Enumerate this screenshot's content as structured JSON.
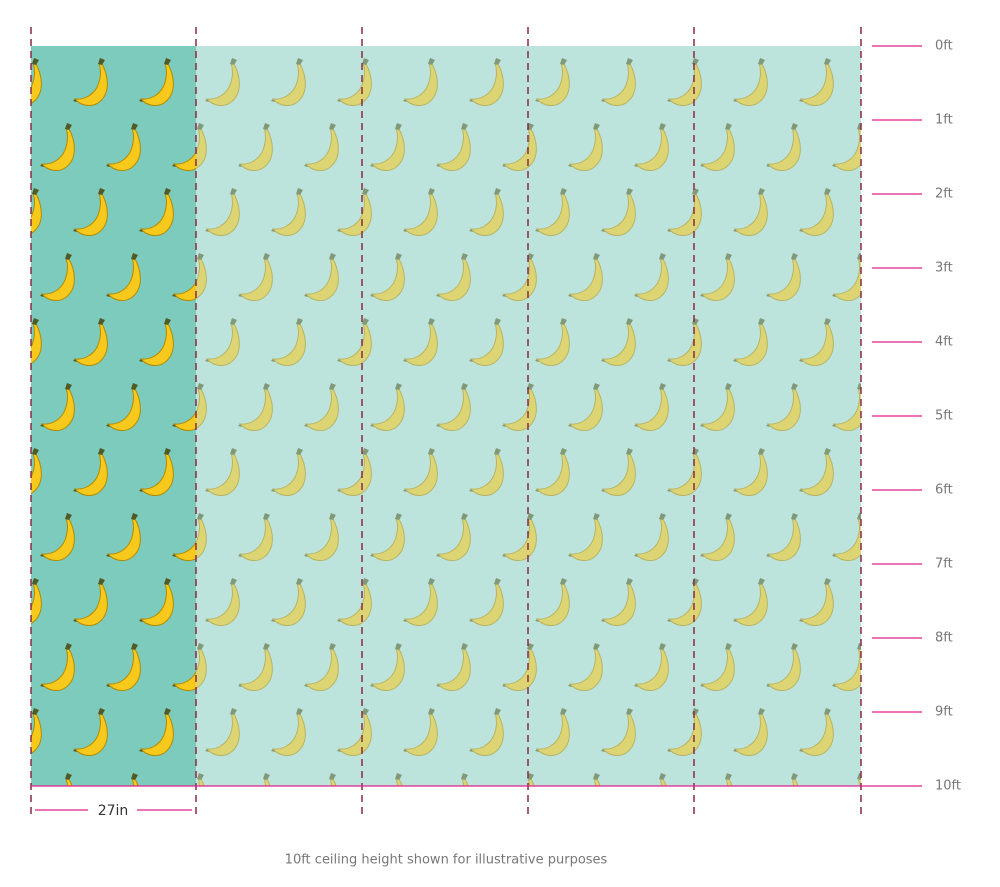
{
  "height_labels": [
    "0ft",
    "1ft",
    "2ft",
    "3ft",
    "4ft",
    "5ft",
    "6ft",
    "7ft",
    "8ft",
    "9ft",
    "10ft"
  ],
  "width_label": "27in",
  "caption": "10ft ceiling height shown for illustrative purposes"
}
